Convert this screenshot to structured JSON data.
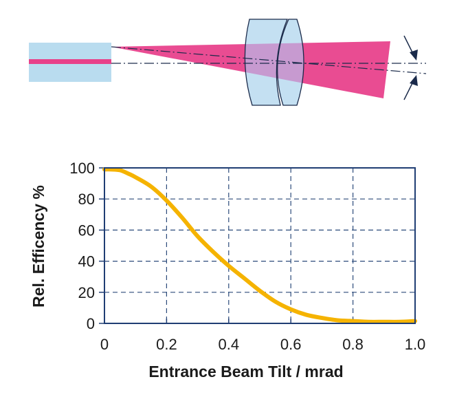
{
  "colors": {
    "fiber_core": "#e8418a",
    "fiber_cladding": "#b9dcef",
    "beam": "#e8428c",
    "lens": "#c4e0f2",
    "lens_overlap": "#c79ad0",
    "outline": "#1a2a4a",
    "curve": "#f5b300",
    "grid": "#2b4a7a",
    "frame": "#1f3d73"
  },
  "chart_data": {
    "type": "line",
    "xlabel": "Entrance Beam Tilt / mrad",
    "ylabel": "Rel. Efficency  %",
    "xlim": [
      0,
      1.0
    ],
    "ylim": [
      0,
      100
    ],
    "xticks": [
      0,
      0.2,
      0.4,
      0.6,
      0.8,
      1.0
    ],
    "xtick_labels": [
      "0",
      "0.2",
      "0.4",
      "0.6",
      "0.8",
      "1.0"
    ],
    "yticks": [
      0,
      20,
      40,
      60,
      80,
      100
    ],
    "ytick_labels": [
      "0",
      "20",
      "40",
      "60",
      "80",
      "100"
    ],
    "grid": true,
    "series": [
      {
        "x": [
          0,
          0.02,
          0.05,
          0.08,
          0.1,
          0.15,
          0.2,
          0.25,
          0.3,
          0.35,
          0.4,
          0.45,
          0.5,
          0.55,
          0.6,
          0.65,
          0.7,
          0.75,
          0.8,
          0.85,
          0.9,
          0.95,
          1.0
        ],
        "y": [
          99,
          99,
          98.5,
          96,
          94,
          88,
          79,
          68,
          56,
          46,
          37,
          29,
          21,
          14,
          9,
          5.5,
          3.5,
          2,
          1.5,
          1,
          1,
          1,
          1.5
        ]
      }
    ]
  }
}
